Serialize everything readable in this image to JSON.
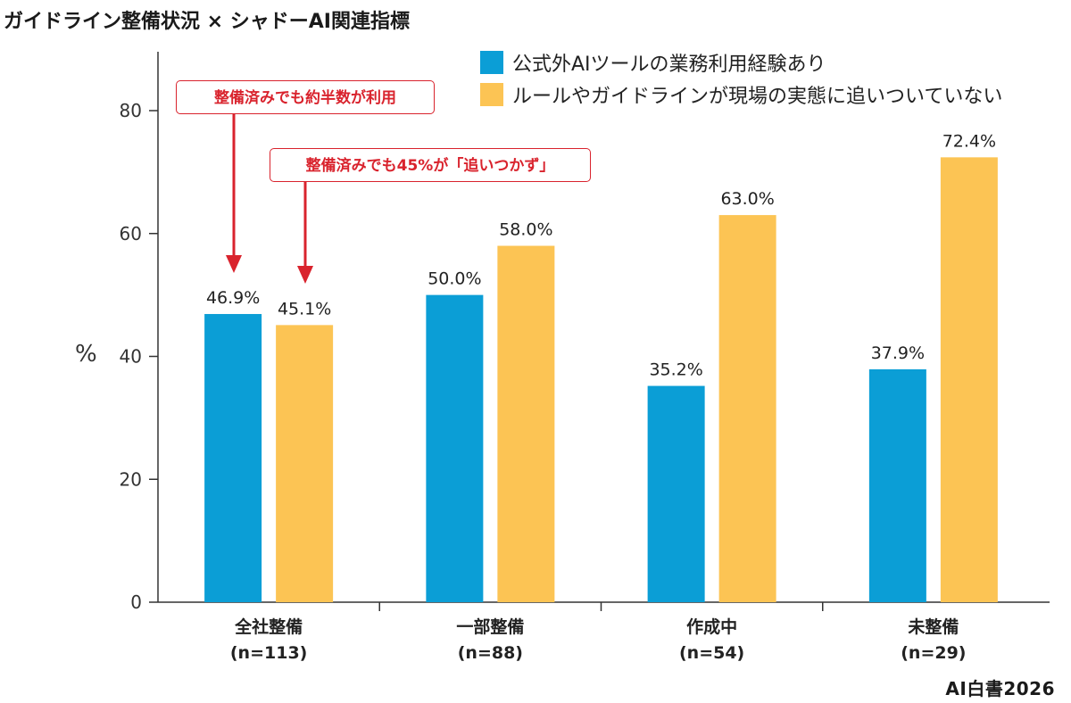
{
  "chart_data": {
    "type": "bar",
    "title": "ガイドライン整備状況 × シャドーAI関連指標",
    "ylabel": "%",
    "xlabel": "",
    "ylim": [
      0,
      80
    ],
    "yticks": [
      "0",
      "20",
      "40",
      "60",
      "80"
    ],
    "categories": [
      {
        "name": "全社整備",
        "n": "(n=113)"
      },
      {
        "name": "一部整備",
        "n": "(n=88)"
      },
      {
        "name": "作成中",
        "n": "(n=54)"
      },
      {
        "name": "未整備",
        "n": "(n=29)"
      }
    ],
    "series": [
      {
        "name": "公式外AIツールの業務利用経験あり",
        "color": "#0b9ed6",
        "values": [
          46.9,
          50.0,
          35.2,
          37.9
        ],
        "labels": [
          "46.9%",
          "50.0%",
          "35.2%",
          "37.9%"
        ]
      },
      {
        "name": "ルールやガイドラインが現場の実態に追いついていない",
        "color": "#fcc454",
        "values": [
          45.1,
          58.0,
          63.0,
          72.4
        ],
        "labels": [
          "45.1%",
          "58.0%",
          "63.0%",
          "72.4%"
        ]
      }
    ],
    "grid": false,
    "legend_position": "top-right",
    "annotations": [
      {
        "text": "整備済みでも約半数が利用",
        "color": "#d9232d"
      },
      {
        "text": "整備済みでも45%が「追いつかず」",
        "color": "#d9232d"
      }
    ]
  },
  "watermark": "AI白書2026"
}
